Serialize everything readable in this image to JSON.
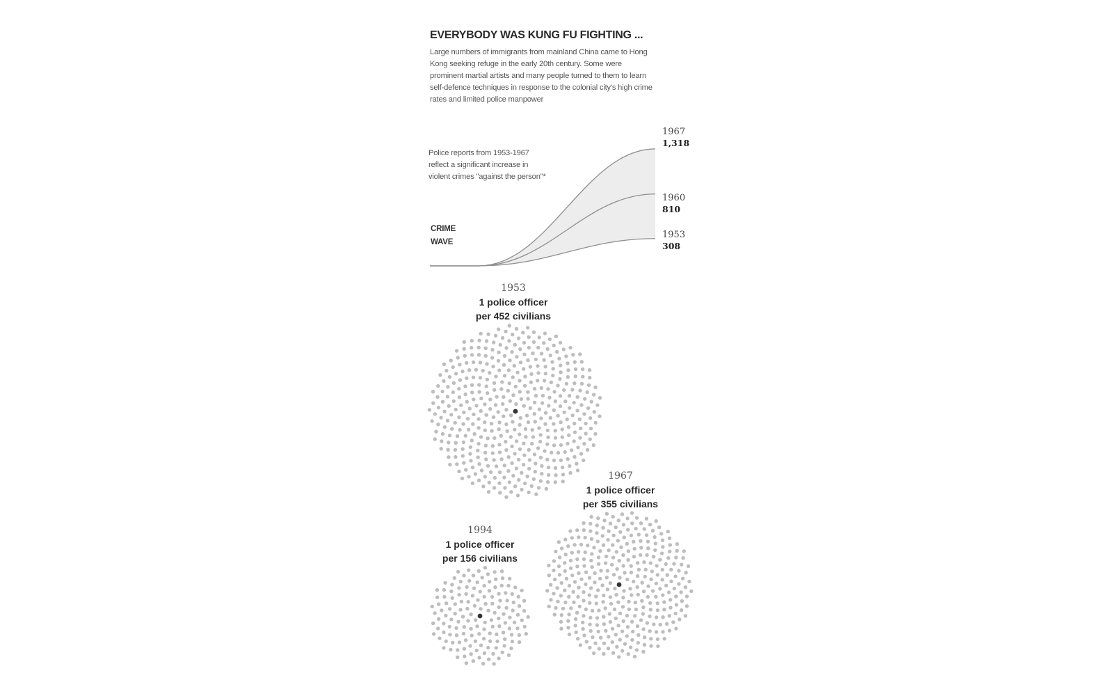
{
  "header": {
    "title": "EVERYBODY WAS KUNG FU FIGHTING ...",
    "intro": "Large numbers of immigrants from mainland China came to Hong Kong seeking refuge in the early 20th century. Some were prominent martial artists and many people turned to them to learn self-defence techniques in response to the colonial city's high crime rates and limited police manpower"
  },
  "chart_data": [
    {
      "type": "line",
      "title": "CRIME WAVE",
      "annotation": "Police reports from 1953-1967 reflect a significant increase in violent crimes \"against the person\"*",
      "series": [
        {
          "year": "1953",
          "label": "308",
          "value": 308
        },
        {
          "year": "1960",
          "label": "810",
          "value": 810
        },
        {
          "year": "1967",
          "label": "1,318",
          "value": 1318
        }
      ]
    },
    {
      "type": "scatter",
      "groups": [
        {
          "year": "1953",
          "line1": "1 police officer",
          "line2": "per 452 civilians",
          "civilians": 452
        },
        {
          "year": "1967",
          "line1": "1 police officer",
          "line2": "per 355 civilians",
          "civilians": 355
        },
        {
          "year": "1994",
          "line1": "1 police officer",
          "line2": "per 156 civilians",
          "civilians": 156
        }
      ]
    }
  ],
  "colors": {
    "civilian_dot": "#bdbdbd",
    "officer_dot": "#333333",
    "curve": "#8f8f8f",
    "fill": "#ededed"
  }
}
